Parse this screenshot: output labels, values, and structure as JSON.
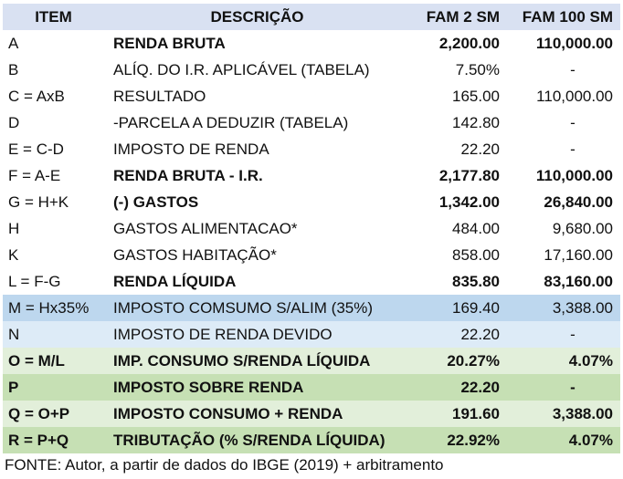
{
  "header": {
    "item": "ITEM",
    "descricao": "DESCRIÇÃO",
    "fam2": "FAM 2 SM",
    "fam100": "FAM 100 SM"
  },
  "rows": [
    {
      "item": "A",
      "desc": "RENDA BRUTA",
      "fam2": "2,200.00",
      "fam100": "110,000.00",
      "style": "bold-desc"
    },
    {
      "item": "B",
      "desc": "ALÍQ. DO I.R. APLICÁVEL (TABELA)",
      "fam2": "7.50%",
      "fam100": "-",
      "style": "plain"
    },
    {
      "item": "C = AxB",
      "desc": "RESULTADO",
      "fam2": "165.00",
      "fam100": "110,000.00",
      "style": "plain"
    },
    {
      "item": "D",
      "desc": "-PARCELA A DEDUZIR (TABELA)",
      "fam2": "142.80",
      "fam100": "-",
      "style": "plain"
    },
    {
      "item": "E = C-D",
      "desc": "IMPOSTO DE RENDA",
      "fam2": "22.20",
      "fam100": "-",
      "style": "plain"
    },
    {
      "item": "F = A-E",
      "desc": "RENDA BRUTA - I.R.",
      "fam2": "2,177.80",
      "fam100": "110,000.00",
      "style": "bold-desc"
    },
    {
      "item": "G = H+K",
      "desc": "(-) GASTOS",
      "fam2": "1,342.00",
      "fam100": "26,840.00",
      "style": "bold-desc"
    },
    {
      "item": "H",
      "desc": "GASTOS ALIMENTACAO*",
      "fam2": "484.00",
      "fam100": "9,680.00",
      "style": "plain"
    },
    {
      "item": "K",
      "desc": "GASTOS HABITAÇÃO*",
      "fam2": "858.00",
      "fam100": "17,160.00",
      "style": "plain"
    },
    {
      "item": "L = F-G",
      "desc": "RENDA LÍQUIDA",
      "fam2": "835.80",
      "fam100": "83,160.00",
      "style": "bold-desc"
    },
    {
      "item": "M = Hx35%",
      "desc": "IMPOSTO COMSUMO S/ALIM (35%)",
      "fam2": "169.40",
      "fam100": "3,388.00",
      "style": "blue"
    },
    {
      "item": "N",
      "desc": "IMPOSTO DE RENDA DEVIDO",
      "fam2": "22.20",
      "fam100": "-",
      "style": "lightblue"
    },
    {
      "item": "O = M/L",
      "desc": "IMP. CONSUMO S/RENDA LÍQUIDA",
      "fam2": "20.27%",
      "fam100": "4.07%",
      "style": "lightgreen-bold"
    },
    {
      "item": "P",
      "desc": "IMPOSTO SOBRE RENDA",
      "fam2": "22.20",
      "fam100": "-",
      "style": "green-bold"
    },
    {
      "item": "Q = O+P",
      "desc": "IMPOSTO CONSUMO + RENDA",
      "fam2": "191.60",
      "fam100": "3,388.00",
      "style": "lightgreen-bold"
    },
    {
      "item": "R = P+Q",
      "desc": "TRIBUTAÇÃO (% S/RENDA LÍQUIDA)",
      "fam2": "22.92%",
      "fam100": "4.07%",
      "style": "green-bold"
    }
  ],
  "footer": "FONTE: Autor, a partir de dados do IBGE (2019) + arbitramento"
}
